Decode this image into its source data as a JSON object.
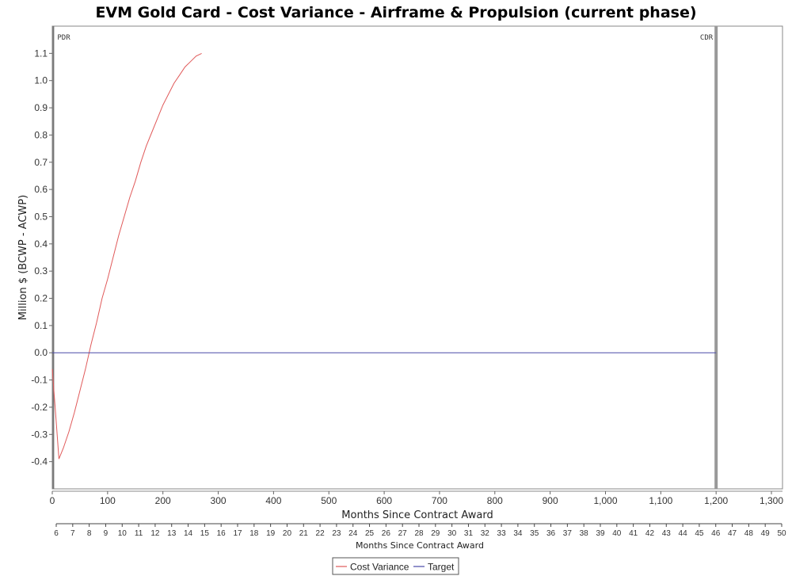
{
  "chart_data": {
    "type": "line",
    "title": "EVM Gold Card - Cost Variance - Airframe & Propulsion (current phase)",
    "ylabel": "Million $ (BCWP - ACWP)",
    "xlabel": "Months Since Contract Award",
    "xlabel2": "Months Since Contract Award",
    "xlim": [
      0,
      1320
    ],
    "ylim": [
      -0.5,
      1.2
    ],
    "x_ticks": [
      0,
      100,
      200,
      300,
      400,
      500,
      600,
      700,
      800,
      900,
      1000,
      1100,
      1200,
      1300
    ],
    "x_tick_labels": [
      "0",
      "100",
      "200",
      "300",
      "400",
      "500",
      "600",
      "700",
      "800",
      "900",
      "1,000",
      "1,100",
      "1,200",
      "1,300"
    ],
    "y_ticks": [
      -0.4,
      -0.3,
      -0.2,
      -0.1,
      0.0,
      0.1,
      0.2,
      0.3,
      0.4,
      0.5,
      0.6,
      0.7,
      0.8,
      0.9,
      1.0,
      1.1
    ],
    "y_tick_labels": [
      "-0.4",
      "-0.3",
      "-0.2",
      "-0.1",
      "0.0",
      "0.1",
      "0.2",
      "0.3",
      "0.4",
      "0.5",
      "0.6",
      "0.7",
      "0.8",
      "0.9",
      "1.0",
      "1.1"
    ],
    "secondary_x_ticks": [
      6,
      7,
      8,
      9,
      10,
      11,
      12,
      13,
      14,
      15,
      16,
      17,
      18,
      19,
      20,
      21,
      22,
      23,
      24,
      25,
      26,
      27,
      28,
      29,
      30,
      31,
      32,
      33,
      34,
      35,
      36,
      37,
      38,
      39,
      40,
      41,
      42,
      43,
      44,
      45,
      46,
      47,
      48,
      49,
      50
    ],
    "milestones": [
      {
        "label": "PDR",
        "x": 2
      },
      {
        "label": "CDR",
        "x": 1200
      }
    ],
    "series": [
      {
        "name": "Cost Variance",
        "color": "#e05a5a",
        "x": [
          0,
          7,
          12,
          20,
          30,
          40,
          50,
          60,
          70,
          80,
          90,
          100,
          110,
          120,
          130,
          140,
          150,
          160,
          170,
          180,
          190,
          200,
          210,
          220,
          230,
          240,
          250,
          260,
          270
        ],
        "y": [
          -0.06,
          -0.25,
          -0.39,
          -0.35,
          -0.29,
          -0.22,
          -0.14,
          -0.06,
          0.03,
          0.11,
          0.2,
          0.27,
          0.35,
          0.43,
          0.5,
          0.57,
          0.63,
          0.7,
          0.76,
          0.81,
          0.86,
          0.91,
          0.95,
          0.99,
          1.02,
          1.05,
          1.07,
          1.09,
          1.1
        ]
      },
      {
        "name": "Target",
        "color": "#4a4aa8",
        "x": [
          0,
          1200
        ],
        "y": [
          0,
          0
        ]
      }
    ],
    "grid": false,
    "legend": "bottom-center"
  }
}
